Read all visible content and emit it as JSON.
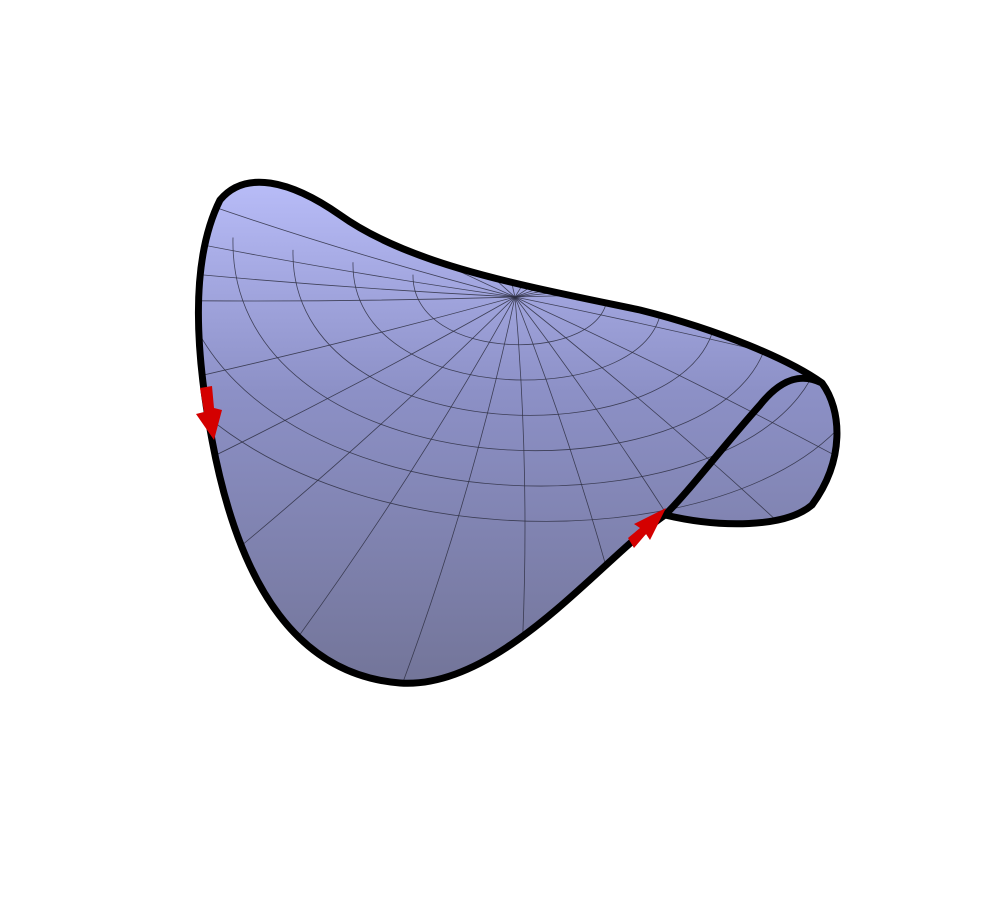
{
  "figure": {
    "subject": "saddle-surface",
    "mesh": {
      "radial_lines": 24,
      "rings": 6
    },
    "colors": {
      "background": "#ffffff",
      "surface_light": "#b8bcf8",
      "surface_mid": "#8c90c6",
      "surface_dark": "#737599",
      "mesh_line": "#2e2f42",
      "boundary": "#000000",
      "orientation_arrow": "#d40000"
    },
    "arrows": [
      {
        "name": "orientation-arrow-left",
        "direction": "down"
      },
      {
        "name": "orientation-arrow-right",
        "direction": "up-right"
      }
    ]
  }
}
